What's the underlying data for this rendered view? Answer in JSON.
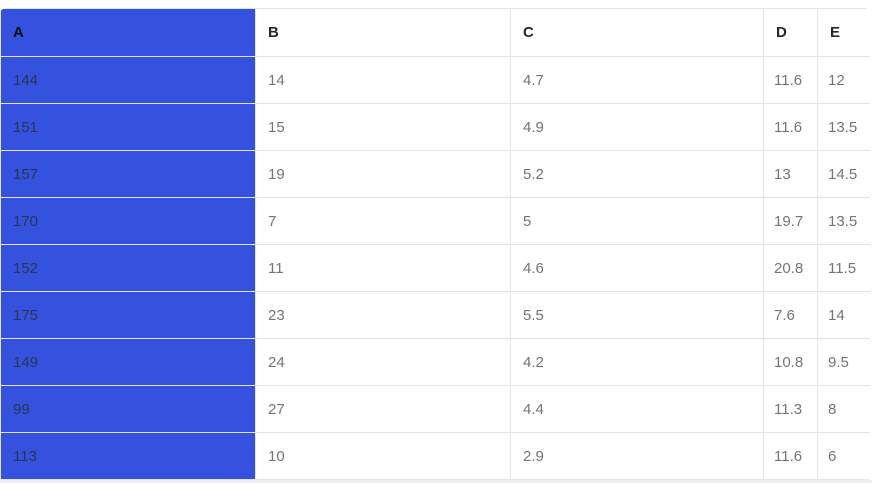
{
  "colors": {
    "selected_column": "#3452dd",
    "grid_border": "#e2e4e7",
    "header_text": "#24292e",
    "cell_text": "#70757a",
    "selected_cell_text": "#2a3552",
    "page_bottom_strip": "#eef0f1"
  },
  "table": {
    "selected_column_index": 0,
    "columns": [
      {
        "label": "A",
        "selected": true
      },
      {
        "label": "B",
        "selected": false
      },
      {
        "label": "C",
        "selected": false
      },
      {
        "label": "D",
        "selected": false
      },
      {
        "label": "E",
        "selected": false
      }
    ],
    "rows": [
      [
        "144",
        "14",
        "4.7",
        "11.6",
        "12"
      ],
      [
        "151",
        "15",
        "4.9",
        "11.6",
        "13.5"
      ],
      [
        "157",
        "19",
        "5.2",
        "13",
        "14.5"
      ],
      [
        "170",
        "7",
        "5",
        "19.7",
        "13.5"
      ],
      [
        "152",
        "11",
        "4.6",
        "20.8",
        "11.5"
      ],
      [
        "175",
        "23",
        "5.5",
        "7.6",
        "14"
      ],
      [
        "149",
        "24",
        "4.2",
        "10.8",
        "9.5"
      ],
      [
        "99",
        "27",
        "4.4",
        "11.3",
        "8"
      ],
      [
        "113",
        "10",
        "2.9",
        "11.6",
        "6"
      ]
    ]
  }
}
